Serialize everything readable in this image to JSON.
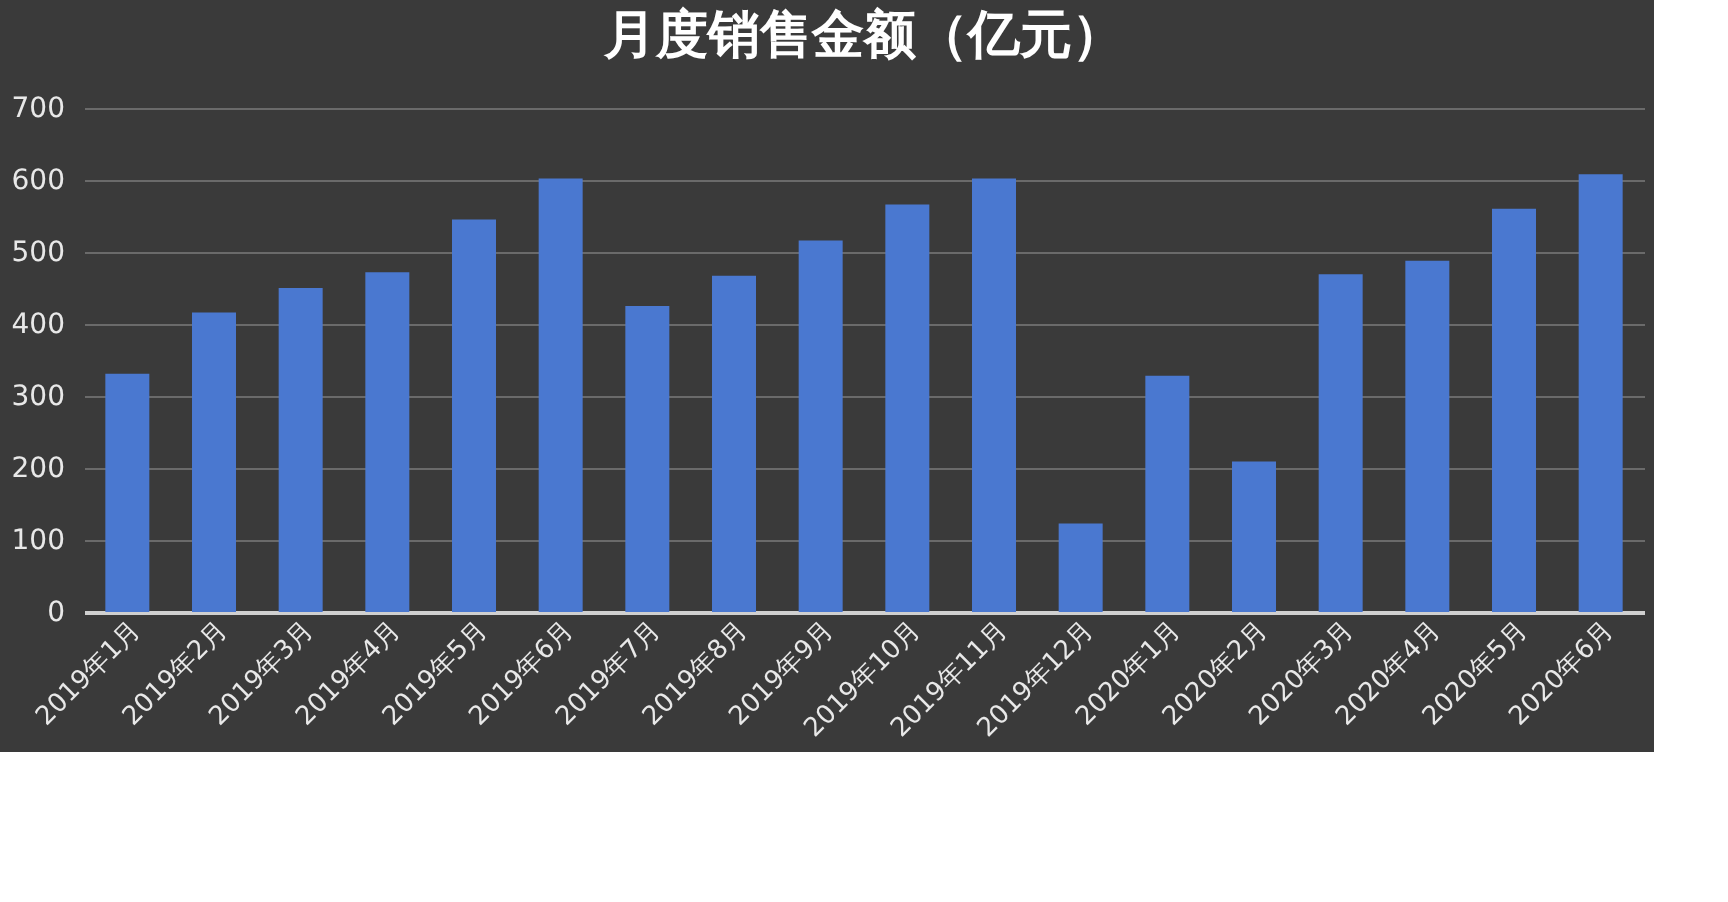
{
  "chart_data": {
    "type": "bar",
    "title": "月度销售金额（亿元）",
    "categories": [
      "2019年1月",
      "2019年2月",
      "2019年3月",
      "2019年4月",
      "2019年5月",
      "2019年6月",
      "2019年7月",
      "2019年8月",
      "2019年9月",
      "2019年10月",
      "2019年11月",
      "2019年12月",
      "2020年1月",
      "2020年2月",
      "2020年3月",
      "2020年4月",
      "2020年5月",
      "2020年6月"
    ],
    "values": [
      331,
      416,
      450,
      472,
      545,
      602,
      425,
      467,
      516,
      566,
      602,
      123,
      328,
      209,
      469,
      488,
      560,
      608
    ],
    "color": "#4a78d0",
    "ylim": [
      0,
      700
    ],
    "yticks": [
      0,
      100,
      200,
      300,
      400,
      500,
      600,
      700
    ],
    "grid": "y"
  }
}
